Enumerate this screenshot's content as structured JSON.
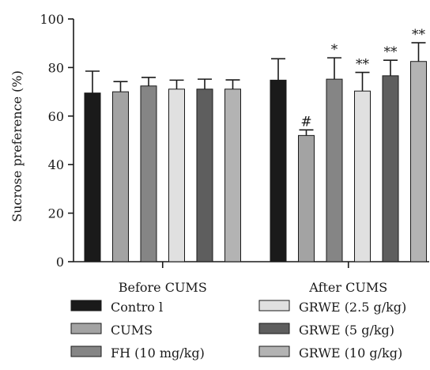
{
  "chart_data": {
    "type": "bar",
    "ylabel": "Sucrose preference (%)",
    "ylim": [
      0,
      100
    ],
    "yticks": [
      0,
      20,
      40,
      60,
      80,
      100
    ],
    "groups": [
      "Before CUMS",
      "After CUMS"
    ],
    "legend_position": "bottom",
    "series": [
      {
        "name": "Contro l",
        "color": "#1a1a1a",
        "values": [
          69.5,
          74.8
        ],
        "errors": [
          9.0,
          8.8
        ],
        "annotations": [
          "",
          ""
        ]
      },
      {
        "name": "CUMS",
        "color": "#a3a3a3",
        "values": [
          70.0,
          52.0
        ],
        "errors": [
          4.2,
          2.3
        ],
        "annotations": [
          "",
          "#"
        ]
      },
      {
        "name": "FH (10 mg/kg)",
        "color": "#858585",
        "values": [
          72.4,
          75.2
        ],
        "errors": [
          3.5,
          8.8
        ],
        "annotations": [
          "",
          "*"
        ]
      },
      {
        "name": "GRWE (2.5 g/kg)",
        "color": "#e0e0e0",
        "values": [
          71.1,
          70.3
        ],
        "errors": [
          3.7,
          7.7
        ],
        "annotations": [
          "",
          "**"
        ]
      },
      {
        "name": "GRWE (5 g/kg)",
        "color": "#5e5e5e",
        "values": [
          71.1,
          76.6
        ],
        "errors": [
          4.1,
          6.4
        ],
        "annotations": [
          "",
          "**"
        ]
      },
      {
        "name": "GRWE (10 g/kg)",
        "color": "#b3b3b3",
        "values": [
          71.1,
          82.5
        ],
        "errors": [
          3.8,
          7.7
        ],
        "annotations": [
          "",
          "**"
        ]
      }
    ]
  }
}
